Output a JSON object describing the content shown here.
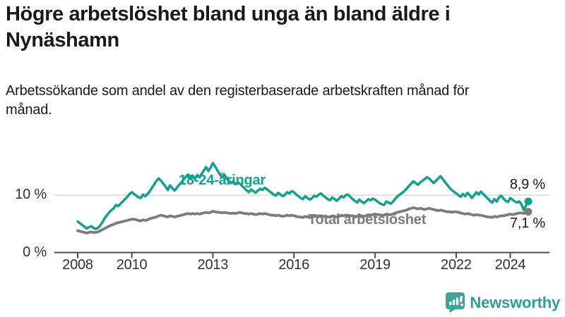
{
  "chart_data": {
    "type": "line",
    "title": "Högre arbetslöshet bland unga än bland äldre i Nynäshamn",
    "subtitle": "Arbetssökande som andel av den registerbaserade arbetskraften månad för månad.",
    "x_range": [
      "2008-01",
      "2024-09"
    ],
    "x_frequency": "monthly",
    "grid": "horizontal-10-only",
    "legend_position": "inline-labels",
    "y_axis": {
      "unit": "%",
      "ylim": [
        0,
        17
      ],
      "ticks": [
        {
          "value": 10,
          "label": "10 %"
        },
        {
          "value": 0,
          "label": "0 %"
        }
      ],
      "gridlines": [
        10
      ]
    },
    "x_ticks": [
      {
        "label": "2008",
        "month_index": 0
      },
      {
        "label": "2010",
        "month_index": 24
      },
      {
        "label": "2013",
        "month_index": 60
      },
      {
        "label": "2016",
        "month_index": 96
      },
      {
        "label": "2019",
        "month_index": 132
      },
      {
        "label": "2022",
        "month_index": 168
      },
      {
        "label": "2024",
        "month_index": 192
      }
    ],
    "series": [
      {
        "name": "18-24-åringar",
        "color": "#149f90",
        "end_label": "8,9 %",
        "last_value": 8.9,
        "values": [
          5.4,
          5.1,
          4.8,
          4.5,
          4.2,
          4.4,
          4.6,
          4.3,
          4.1,
          4.3,
          4.7,
          5.3,
          6.0,
          6.5,
          7.0,
          7.4,
          7.7,
          8.3,
          8.1,
          8.5,
          8.9,
          9.3,
          9.7,
          10.2,
          10.5,
          10.2,
          9.9,
          9.6,
          9.5,
          10.1,
          9.8,
          10.2,
          10.7,
          11.3,
          11.9,
          12.5,
          12.9,
          12.5,
          12.0,
          11.5,
          10.9,
          11.7,
          11.2,
          10.8,
          11.3,
          11.8,
          12.2,
          12.7,
          13.2,
          13.6,
          12.9,
          13.4,
          12.8,
          13.5,
          13.1,
          13.7,
          14.3,
          14.9,
          14.2,
          14.8,
          15.6,
          15.0,
          14.3,
          13.7,
          13.1,
          13.6,
          13.0,
          12.5,
          12.1,
          12.4,
          11.9,
          12.2,
          12.0,
          11.6,
          11.2,
          10.8,
          10.5,
          11.0,
          10.7,
          10.4,
          10.8,
          11.1,
          10.9,
          11.3,
          11.0,
          10.7,
          10.4,
          10.1,
          9.9,
          10.4,
          10.1,
          9.8,
          10.1,
          10.5,
          10.3,
          10.7,
          10.5,
          10.1,
          9.8,
          9.5,
          9.3,
          9.8,
          9.5,
          9.2,
          9.5,
          9.9,
          9.7,
          10.1,
          10.3,
          9.9,
          9.6,
          9.3,
          9.1,
          9.6,
          9.3,
          9.0,
          9.4,
          9.8,
          9.6,
          10.0,
          10.1,
          9.7,
          9.3,
          9.0,
          8.7,
          9.2,
          8.9,
          8.6,
          8.9,
          9.3,
          9.1,
          9.4,
          9.2,
          8.9,
          8.6,
          8.4,
          8.3,
          8.9,
          8.7,
          8.5,
          8.9,
          9.4,
          9.8,
          10.1,
          10.4,
          10.7,
          11.1,
          11.6,
          12.0,
          12.4,
          12.1,
          11.8,
          12.2,
          12.5,
          12.8,
          13.1,
          12.9,
          12.5,
          12.1,
          12.5,
          12.9,
          13.3,
          12.8,
          12.3,
          11.8,
          11.3,
          10.9,
          10.6,
          10.3,
          10.0,
          9.7,
          10.2,
          9.8,
          10.4,
          10.0,
          9.5,
          10.0,
          10.5,
          10.1,
          10.6,
          10.2,
          9.8,
          9.4,
          9.0,
          8.7,
          9.3,
          8.9,
          9.6,
          9.9,
          9.4,
          9.0,
          8.8,
          9.5,
          9.2,
          8.9,
          8.7,
          8.9,
          8.4,
          7.4,
          8.2,
          8.9
        ]
      },
      {
        "name": "Total arbetslöshet",
        "color": "#7b7b7b",
        "end_label": "7,1 %",
        "last_value": 7.1,
        "values": [
          3.8,
          3.7,
          3.6,
          3.5,
          3.4,
          3.5,
          3.6,
          3.5,
          3.5,
          3.6,
          3.8,
          4.0,
          4.2,
          4.4,
          4.6,
          4.8,
          4.9,
          5.1,
          5.2,
          5.3,
          5.4,
          5.5,
          5.6,
          5.7,
          5.8,
          5.8,
          5.7,
          5.6,
          5.5,
          5.7,
          5.6,
          5.7,
          5.9,
          6.0,
          6.1,
          6.2,
          6.4,
          6.5,
          6.4,
          6.3,
          6.2,
          6.4,
          6.3,
          6.2,
          6.3,
          6.4,
          6.5,
          6.6,
          6.7,
          6.8,
          6.7,
          6.8,
          6.7,
          6.8,
          6.7,
          6.8,
          6.9,
          7.0,
          6.9,
          7.0,
          7.2,
          7.1,
          7.0,
          7.0,
          6.9,
          7.0,
          6.9,
          6.9,
          6.8,
          6.9,
          6.8,
          6.9,
          7.0,
          6.9,
          6.8,
          6.8,
          6.7,
          6.8,
          6.7,
          6.6,
          6.7,
          6.8,
          6.7,
          6.8,
          6.7,
          6.6,
          6.5,
          6.5,
          6.4,
          6.5,
          6.4,
          6.3,
          6.4,
          6.5,
          6.4,
          6.5,
          6.4,
          6.3,
          6.2,
          6.2,
          6.1,
          6.3,
          6.2,
          6.1,
          6.2,
          6.3,
          6.3,
          6.4,
          6.4,
          6.3,
          6.3,
          6.2,
          6.2,
          6.4,
          6.3,
          6.2,
          6.3,
          6.5,
          6.4,
          6.5,
          6.5,
          6.4,
          6.4,
          6.3,
          6.3,
          6.5,
          6.4,
          6.3,
          6.4,
          6.6,
          6.5,
          6.6,
          6.7,
          6.6,
          6.6,
          6.5,
          6.5,
          6.7,
          6.6,
          6.6,
          6.7,
          6.9,
          7.0,
          7.1,
          7.2,
          7.3,
          7.4,
          7.6,
          7.7,
          7.8,
          7.7,
          7.6,
          7.7,
          7.6,
          7.5,
          7.6,
          7.7,
          7.6,
          7.5,
          7.4,
          7.3,
          7.4,
          7.3,
          7.2,
          7.1,
          7.1,
          7.0,
          7.1,
          7.1,
          7.0,
          6.9,
          6.8,
          6.7,
          6.8,
          6.7,
          6.6,
          6.5,
          6.6,
          6.5,
          6.5,
          6.4,
          6.3,
          6.2,
          6.2,
          6.1,
          6.3,
          6.2,
          6.3,
          6.4,
          6.4,
          6.5,
          6.6,
          6.7,
          6.6,
          6.7,
          6.8,
          6.9,
          6.9,
          6.8,
          7.0,
          7.1
        ]
      }
    ],
    "colors": {
      "accent_teal": "#149f90",
      "series_gray": "#7b7b7b",
      "gridline": "#d9d9d9",
      "axis": "#4a4a4a",
      "text": "#191919",
      "brand_teal": "#2f9d95"
    }
  },
  "footer": {
    "brand": "Newsworthy"
  }
}
